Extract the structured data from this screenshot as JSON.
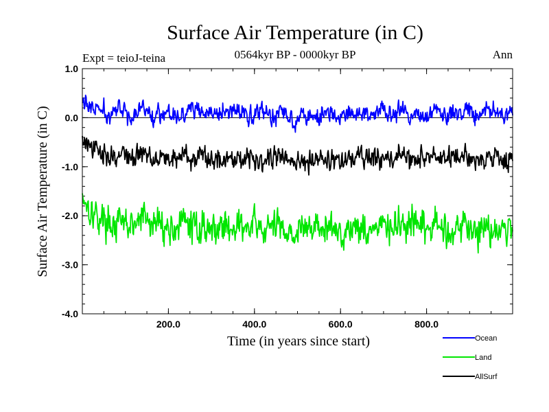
{
  "chart_data": {
    "type": "line",
    "title": "Surface Air Temperature (in C)",
    "subtitle": "0564kyr BP - 0000kyr BP",
    "experiment_label": "Expt = teioJ-teina",
    "season_label": "Ann",
    "xlabel": "Time (in years since start)",
    "ylabel": "Surface Air Temperature (in C)",
    "xlim": [
      0,
      1000
    ],
    "ylim": [
      -4.0,
      1.0
    ],
    "x_ticks": [
      200,
      400,
      600,
      800
    ],
    "x_tick_labels": [
      "200.0",
      "400.0",
      "600.0",
      "800.0"
    ],
    "y_ticks": [
      1.0,
      0.0,
      -1.0,
      -2.0,
      -3.0,
      -4.0
    ],
    "y_tick_labels": [
      "1.0",
      "0.0",
      "-1.0",
      "-2.0",
      "-3.0",
      "-4.0"
    ],
    "reference_line_y": 0.0,
    "series": [
      {
        "name": "Ocean",
        "color": "#0000ff",
        "x_start": 0,
        "x_step": 20,
        "values": [
          0.35,
          0.2,
          0.15,
          0.05,
          0.15,
          0.1,
          0.05,
          0.2,
          0.05,
          0.1,
          0.15,
          0.05,
          0.1,
          0.2,
          0.05,
          0.1,
          0.05,
          0.15,
          0.1,
          0.05,
          0.1,
          0.15,
          0.05,
          0.1,
          0.05,
          0.0,
          0.1,
          0.05,
          0.1,
          0.05,
          0.0,
          0.05,
          0.1,
          0.05,
          0.1,
          0.15,
          0.05,
          0.1,
          0.05,
          0.1,
          0.05,
          0.1,
          0.05,
          0.1,
          0.15,
          0.1,
          0.05,
          0.2,
          0.1,
          0.05
        ]
      },
      {
        "name": "Land",
        "color": "#00e600",
        "x_start": 0,
        "x_step": 20,
        "values": [
          -1.55,
          -1.9,
          -2.05,
          -2.1,
          -2.2,
          -2.15,
          -2.25,
          -2.0,
          -2.2,
          -2.1,
          -2.3,
          -2.2,
          -2.15,
          -2.25,
          -2.2,
          -2.3,
          -2.2,
          -2.25,
          -2.15,
          -2.3,
          -2.2,
          -2.3,
          -2.25,
          -2.2,
          -2.3,
          -2.35,
          -2.25,
          -2.2,
          -2.3,
          -2.25,
          -2.35,
          -2.25,
          -2.2,
          -2.3,
          -2.25,
          -2.2,
          -2.3,
          -2.15,
          -2.25,
          -2.2,
          -2.3,
          -2.2,
          -2.25,
          -2.3,
          -2.2,
          -2.25,
          -2.3,
          -2.2,
          -2.25,
          -2.3
        ]
      },
      {
        "name": "AllSurf",
        "color": "#000000",
        "x_start": 0,
        "x_step": 20,
        "values": [
          -0.45,
          -0.65,
          -0.7,
          -0.75,
          -0.8,
          -0.75,
          -0.85,
          -0.7,
          -0.8,
          -0.75,
          -0.85,
          -0.8,
          -0.75,
          -0.85,
          -0.8,
          -0.85,
          -0.8,
          -0.85,
          -0.75,
          -0.85,
          -0.8,
          -0.85,
          -0.8,
          -0.8,
          -0.85,
          -0.95,
          -0.85,
          -0.8,
          -0.85,
          -0.85,
          -0.9,
          -0.85,
          -0.8,
          -0.85,
          -0.85,
          -0.8,
          -0.85,
          -0.75,
          -0.85,
          -0.8,
          -0.85,
          -0.8,
          -0.85,
          -0.85,
          -0.8,
          -0.85,
          -0.85,
          -0.8,
          -0.8,
          -0.85
        ]
      }
    ],
    "legend": [
      {
        "name": "Ocean",
        "color": "#0000ff"
      },
      {
        "name": "Land",
        "color": "#00e600"
      },
      {
        "name": "AllSurf",
        "color": "#000000"
      }
    ],
    "legend_position": "bottom-right, outside plot"
  }
}
